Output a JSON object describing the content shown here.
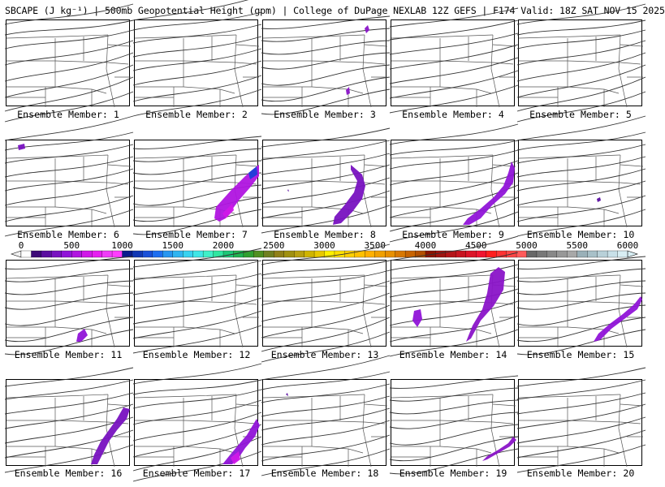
{
  "header": {
    "title": "SBCAPE (J kg⁻¹) | 500mb Geopotential Height (gpm) | College of DuPage NEXLAB 12Z GEFS | F174 Valid: 18Z SAT NOV 15 2025"
  },
  "colorbar": {
    "tick_labels": [
      "0",
      "500",
      "1000",
      "1500",
      "2000",
      "2500",
      "3000",
      "3500",
      "4000",
      "4500",
      "5000",
      "5500",
      "6000"
    ],
    "colors": [
      "#ffffff",
      "#3c0a78",
      "#5a0ea0",
      "#7812c0",
      "#9014d8",
      "#b014e0",
      "#d018e8",
      "#e61ef0",
      "#f03cf8",
      "#ff3cff",
      "#0a1c8c",
      "#1238b4",
      "#1a50d8",
      "#1e6ef0",
      "#2896f0",
      "#30b4f0",
      "#38d2f0",
      "#40e6e6",
      "#40f0c8",
      "#30e6a0",
      "#1ec878",
      "#20b450",
      "#30a030",
      "#509020",
      "#708020",
      "#908018",
      "#a09010",
      "#b8a010",
      "#d0b400",
      "#e8c800",
      "#fff000",
      "#ffe000",
      "#ffd000",
      "#ffc000",
      "#ffb000",
      "#f0a000",
      "#e89000",
      "#d87800",
      "#c86400",
      "#b45000",
      "#8c1400",
      "#a01410",
      "#b41418",
      "#c81420",
      "#dc1428",
      "#f01430",
      "#ff1e1e",
      "#ff3232",
      "#ff4646",
      "#ff5a5a",
      "#686868",
      "#787878",
      "#888888",
      "#989898",
      "#a8a8a8",
      "#9ab0b8",
      "#a8c0c8",
      "#b8d0d8",
      "#c8e0e8",
      "#d8eef4"
    ]
  },
  "panels": [
    {
      "label": "Ensemble Member: 1",
      "cape": []
    },
    {
      "label": "Ensemble Member: 2",
      "cape": []
    },
    {
      "label": "Ensemble Member: 3",
      "cape": []
    },
    {
      "label": "Ensemble Member: 4",
      "cape": []
    },
    {
      "label": "Ensemble Member: 5",
      "cape": []
    },
    {
      "label": "Ensemble Member: 6",
      "cape": []
    },
    {
      "label": "Ensemble Member: 7",
      "cape": []
    },
    {
      "label": "Ensemble Member: 8",
      "cape": []
    },
    {
      "label": "Ensemble Member: 9",
      "cape": []
    },
    {
      "label": "Ensemble Member: 10",
      "cape": []
    },
    {
      "label": "Ensemble Member: 11",
      "cape": []
    },
    {
      "label": "Ensemble Member: 12",
      "cape": []
    },
    {
      "label": "Ensemble Member: 13",
      "cape": []
    },
    {
      "label": "Ensemble Member: 14",
      "cape": []
    },
    {
      "label": "Ensemble Member: 15",
      "cape": []
    },
    {
      "label": "Ensemble Member: 16",
      "cape": []
    },
    {
      "label": "Ensemble Member: 17",
      "cape": []
    },
    {
      "label": "Ensemble Member: 18",
      "cape": []
    },
    {
      "label": "Ensemble Member: 19",
      "cape": []
    },
    {
      "label": "Ensemble Member: 20",
      "cape": []
    }
  ]
}
